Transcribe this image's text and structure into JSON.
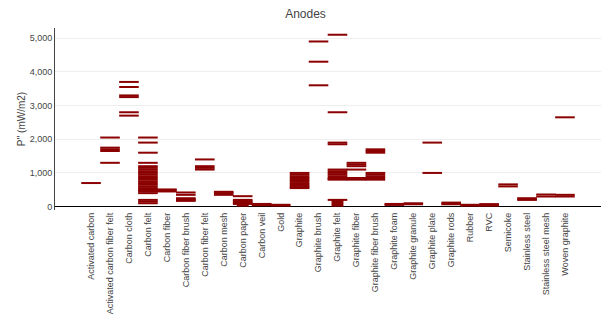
{
  "chart_data": {
    "type": "strip",
    "title": "Anodes",
    "ylabel": "P'' (mW/m2)",
    "categories": [
      "Activated carbon",
      "Activated carbon fiber felt",
      "Carbon cloth",
      "Carbon felt",
      "Carbon fiber",
      "Carbon fiber brush",
      "Carbon fiber felt",
      "Carbon mesh",
      "Carbon paper",
      "Carbon veil",
      "Gold",
      "Graphite",
      "Graphite brush",
      "Graphite felt",
      "Graphite fiber",
      "Graphite fiber brush",
      "Graphite foam",
      "Graphite granule",
      "Graphite plate",
      "Graphite rods",
      "Rubber",
      "RVC",
      "Semicoke",
      "Stainless steel",
      "Stainless steel mesh",
      "Woven graphite"
    ],
    "series": [
      {
        "type": "strip",
        "marker": "dash",
        "color": "#8B0000",
        "values": [
          [
            700
          ],
          [
            1300,
            1650,
            1700,
            1750,
            2050
          ],
          [
            2700,
            2800,
            3250,
            3300,
            3550,
            3700
          ],
          [
            100,
            150,
            200,
            400,
            450,
            480,
            500,
            550,
            600,
            650,
            700,
            750,
            800,
            850,
            900,
            950,
            1000,
            1050,
            1100,
            1150,
            1200,
            1300,
            1600,
            1900,
            2050
          ],
          [
            450,
            490,
            510
          ],
          [
            170,
            200,
            220,
            250,
            350,
            420
          ],
          [
            1100,
            1150,
            1200,
            1400
          ],
          [
            350,
            400,
            440
          ],
          [
            80,
            100,
            130,
            160,
            200,
            310
          ],
          [
            40,
            60,
            80
          ],
          [
            30,
            55
          ],
          [
            550,
            580,
            620,
            660,
            700,
            760,
            800,
            850,
            900,
            950,
            1000
          ],
          [
            3600,
            4300,
            4900
          ],
          [
            200,
            800,
            820,
            850,
            900,
            950,
            1000,
            1050,
            1100,
            1850,
            1900,
            2800,
            5100
          ],
          [
            800,
            820,
            850,
            1100,
            1200,
            1250,
            1300
          ],
          [
            800,
            850,
            900,
            950,
            1000,
            1600,
            1650,
            1700
          ],
          [
            50,
            80
          ],
          [
            70,
            100
          ],
          [
            1000,
            1900
          ],
          [
            70,
            90,
            120
          ],
          [
            30,
            55
          ],
          [
            30,
            50,
            75
          ],
          [
            600,
            660
          ],
          [
            200,
            220,
            250
          ],
          [
            300,
            360
          ],
          [
            300,
            350,
            2650
          ]
        ]
      },
      {
        "type": "bar",
        "color": "#8B0000",
        "values": [
          null,
          null,
          null,
          null,
          null,
          null,
          null,
          null,
          200,
          null,
          null,
          null,
          null,
          200,
          null,
          null,
          null,
          null,
          null,
          null,
          null,
          null,
          null,
          null,
          null,
          null
        ]
      }
    ],
    "ylim": [
      -100,
      5300
    ],
    "yticks": [
      0,
      {
        "value": 1000,
        "label": "1,000"
      },
      {
        "value": 2000,
        "label": "2,000"
      },
      {
        "value": 3000,
        "label": "3,000"
      },
      {
        "value": 4000,
        "label": "4,000"
      },
      {
        "value": 5000,
        "label": "5,000"
      }
    ],
    "grid": true
  }
}
